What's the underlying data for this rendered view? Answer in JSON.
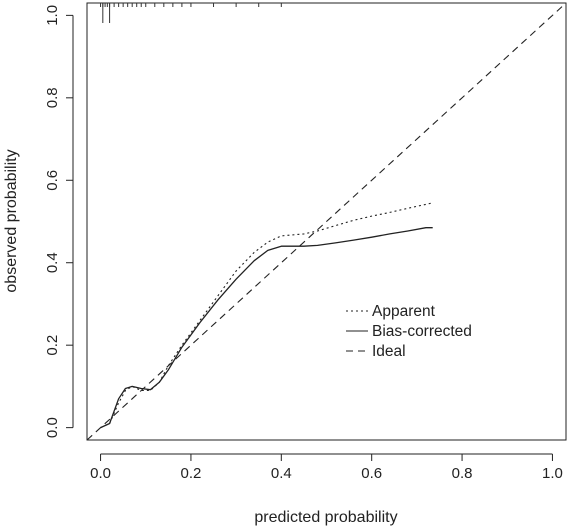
{
  "chart_data": {
    "type": "line",
    "xlabel": "predicted probability",
    "ylabel": "observed probability",
    "xlim": [
      -0.03,
      1.03
    ],
    "ylim": [
      -0.03,
      1.03
    ],
    "x_ticks": [
      0.0,
      0.2,
      0.4,
      0.6,
      0.8,
      1.0
    ],
    "x_tick_labels": [
      "0.0",
      "0.2",
      "0.4",
      "0.6",
      "0.8",
      "1.0"
    ],
    "y_ticks": [
      0.0,
      0.2,
      0.4,
      0.6,
      0.8,
      1.0
    ],
    "y_tick_labels": [
      "0.0",
      "0.2",
      "0.4",
      "0.6",
      "0.8",
      "1.0"
    ],
    "grid": false,
    "legend_position": "lower-right",
    "series": [
      {
        "name": "Apparent",
        "style": "dotted",
        "x": [
          0.0,
          0.02,
          0.04,
          0.055,
          0.07,
          0.09,
          0.11,
          0.13,
          0.15,
          0.18,
          0.22,
          0.26,
          0.3,
          0.34,
          0.37,
          0.4,
          0.42,
          0.45,
          0.48,
          0.52,
          0.56,
          0.6,
          0.64,
          0.68,
          0.735
        ],
        "y": [
          0.0,
          0.01,
          0.06,
          0.09,
          0.1,
          0.09,
          0.09,
          0.11,
          0.15,
          0.2,
          0.26,
          0.32,
          0.38,
          0.425,
          0.45,
          0.465,
          0.467,
          0.47,
          0.477,
          0.49,
          0.503,
          0.513,
          0.522,
          0.532,
          0.545
        ]
      },
      {
        "name": "Bias-corrected",
        "style": "solid",
        "x": [
          0.0,
          0.02,
          0.04,
          0.055,
          0.07,
          0.09,
          0.11,
          0.13,
          0.15,
          0.18,
          0.22,
          0.26,
          0.3,
          0.34,
          0.37,
          0.4,
          0.42,
          0.45,
          0.48,
          0.52,
          0.56,
          0.6,
          0.64,
          0.68,
          0.72,
          0.735
        ],
        "y": [
          0.0,
          0.01,
          0.07,
          0.095,
          0.1,
          0.095,
          0.092,
          0.11,
          0.14,
          0.195,
          0.255,
          0.31,
          0.36,
          0.405,
          0.43,
          0.44,
          0.44,
          0.44,
          0.442,
          0.448,
          0.455,
          0.462,
          0.47,
          0.477,
          0.485,
          0.485
        ]
      },
      {
        "name": "Ideal",
        "style": "dashed",
        "x": [
          -0.03,
          1.03
        ],
        "y": [
          -0.03,
          1.03
        ]
      }
    ],
    "rug_top_x": [
      0.0,
      0.005,
      0.01,
      0.015,
      0.02,
      0.03,
      0.04,
      0.05,
      0.06,
      0.07,
      0.08,
      0.09,
      0.1,
      0.12,
      0.14,
      0.16,
      0.18,
      0.2,
      0.25,
      0.3,
      0.35,
      0.4
    ],
    "rug_top_long_x": [
      0.005,
      0.02
    ]
  }
}
